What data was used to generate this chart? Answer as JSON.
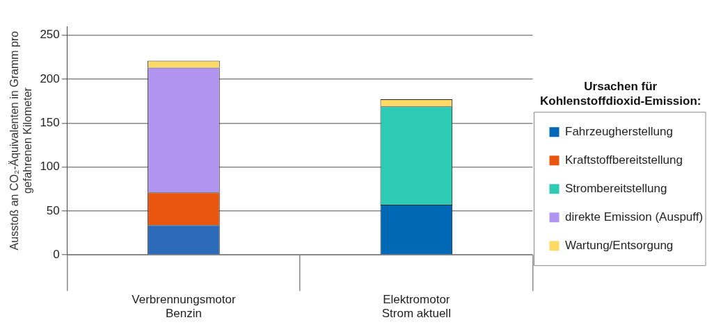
{
  "chart_data": {
    "type": "bar",
    "stacked": true,
    "categories": [
      "Verbrennungsmotor Benzin",
      "Elektromotor Strom aktuell"
    ],
    "ylabel": "Ausstoß an CO₂-Äquivalenten in Gramm pro gefahrenen Kilometer",
    "legend_title": "Ursachen für Kohlenstoffdioxid-Emission:",
    "ylim": [
      0,
      260
    ],
    "yticks": [
      0,
      50,
      100,
      150,
      200,
      250
    ],
    "grid": "y",
    "legend": "right",
    "series": [
      {
        "name": "Fahrzeugherstellung",
        "color": "#0068b4",
        "colors": [
          "#2a6ab8",
          "#0068b4"
        ],
        "values": [
          34,
          57
        ]
      },
      {
        "name": "Kraftstoffbereitstellung",
        "color": "#e8560f",
        "values": [
          37,
          null
        ]
      },
      {
        "name": "Strombereitstellung",
        "color": "#2ecbb4",
        "values": [
          null,
          112
        ]
      },
      {
        "name": "direkte Emission (Auspuff)",
        "color": "#b094f0",
        "values": [
          142,
          null
        ]
      },
      {
        "name": "Wartung/Entsorgung",
        "color": "#ffd966",
        "values": [
          8,
          8
        ]
      }
    ]
  }
}
